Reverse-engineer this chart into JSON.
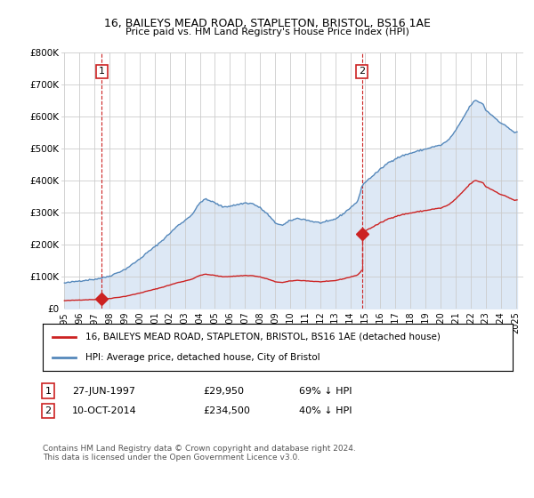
{
  "title": "16, BAILEYS MEAD ROAD, STAPLETON, BRISTOL, BS16 1AE",
  "subtitle": "Price paid vs. HM Land Registry's House Price Index (HPI)",
  "legend_line1": "16, BAILEYS MEAD ROAD, STAPLETON, BRISTOL, BS16 1AE (detached house)",
  "legend_line2": "HPI: Average price, detached house, City of Bristol",
  "footer": "Contains HM Land Registry data © Crown copyright and database right 2024.\nThis data is licensed under the Open Government Licence v3.0.",
  "hpi_color": "#5588bb",
  "hpi_fill_color": "#dde8f5",
  "price_color": "#cc2222",
  "ylim": [
    0,
    800000
  ],
  "xlim": [
    1994.8,
    2025.5
  ],
  "yticks": [
    0,
    100000,
    200000,
    300000,
    400000,
    500000,
    600000,
    700000,
    800000
  ],
  "ytick_labels": [
    "£0",
    "£100K",
    "£200K",
    "£300K",
    "£400K",
    "£500K",
    "£600K",
    "£700K",
    "£800K"
  ],
  "xticks": [
    1995,
    1996,
    1997,
    1998,
    1999,
    2000,
    2001,
    2002,
    2003,
    2004,
    2005,
    2006,
    2007,
    2008,
    2009,
    2010,
    2011,
    2012,
    2013,
    2014,
    2015,
    2016,
    2017,
    2018,
    2019,
    2020,
    2021,
    2022,
    2023,
    2024,
    2025
  ],
  "background_color": "#ffffff",
  "grid_color": "#cccccc",
  "sale1_year": 1997.48,
  "sale1_price": 29950,
  "sale2_year": 2014.77,
  "sale2_price": 234500,
  "label1_box": "1",
  "label2_box": "2",
  "row1_date": "27-JUN-1997",
  "row1_price": "£29,950",
  "row1_pct": "69% ↓ HPI",
  "row2_date": "10-OCT-2014",
  "row2_price": "£234,500",
  "row2_pct": "40% ↓ HPI"
}
